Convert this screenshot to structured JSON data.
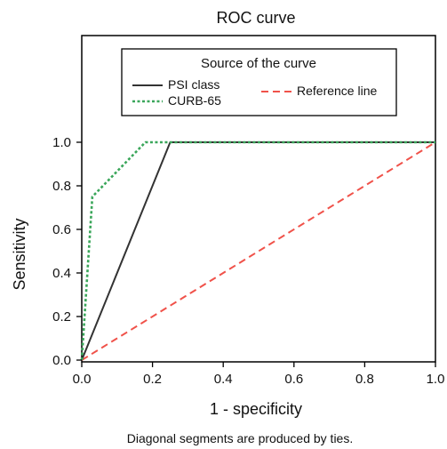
{
  "chart_data": {
    "type": "line",
    "title": "ROC curve",
    "xlabel": "1 - specificity",
    "ylabel": "Sensitivity",
    "footnote": "Diagonal segments are produced by ties.",
    "xlim": [
      0,
      1
    ],
    "ylim": [
      0,
      1
    ],
    "x_ticks": [
      "0.0",
      "0.2",
      "0.4",
      "0.6",
      "0.8",
      "1.0"
    ],
    "y_ticks": [
      "0.0",
      "0.2",
      "0.4",
      "0.6",
      "0.8",
      "1.0"
    ],
    "grid": false,
    "legend": {
      "title": "Source of the curve",
      "placement": "top, inside plot frame"
    },
    "series": [
      {
        "name": "PSI class",
        "color": "#333333",
        "dash": "solid",
        "points": [
          [
            0,
            0
          ],
          [
            0.25,
            1.0
          ],
          [
            1.0,
            1.0
          ]
        ]
      },
      {
        "name": "CURB-65",
        "color": "#3aa65a",
        "dash": "dotted",
        "points": [
          [
            0,
            0
          ],
          [
            0.03,
            0.75
          ],
          [
            0.18,
            1.0
          ],
          [
            1.0,
            1.0
          ]
        ]
      },
      {
        "name": "Reference line",
        "color": "#f0524a",
        "dash": "dashed",
        "points": [
          [
            0,
            0
          ],
          [
            1.0,
            1.0
          ]
        ]
      }
    ]
  }
}
